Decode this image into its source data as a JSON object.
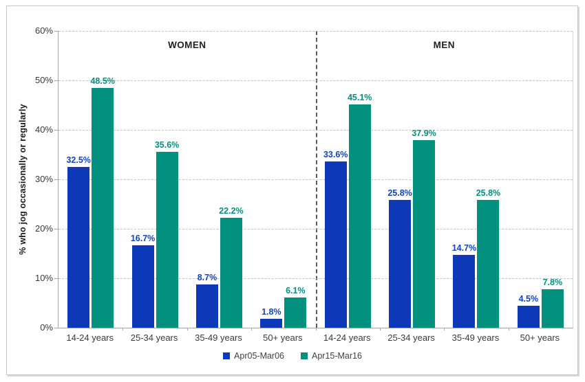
{
  "chart_data": {
    "type": "bar",
    "title": "",
    "ylabel": "% who jog occasionally or regularly",
    "ylim": [
      0,
      60
    ],
    "ytick_step": 10,
    "ytick_suffix": "%",
    "grid": "horizontal-dashed",
    "legend_position": "bottom-center",
    "legend": [
      "Apr05-Mar06",
      "Apr15-Mar16"
    ],
    "colors": {
      "Apr05-Mar06": "#0d38b8",
      "Apr15-Mar16": "#02917f",
      "label_blue": "#1443c0",
      "label_teal": "#029180"
    },
    "groups": [
      {
        "label": "WOMEN",
        "categories": [
          "14-24 years",
          "25-34 years",
          "35-49 years",
          "50+ years"
        ],
        "series": [
          {
            "name": "Apr05-Mar06",
            "values": [
              32.5,
              16.7,
              8.7,
              1.8
            ]
          },
          {
            "name": "Apr15-Mar16",
            "values": [
              48.5,
              35.6,
              22.2,
              6.1
            ]
          }
        ]
      },
      {
        "label": "MEN",
        "categories": [
          "14-24 years",
          "25-34 years",
          "35-49 years",
          "50+ years"
        ],
        "series": [
          {
            "name": "Apr05-Mar06",
            "values": [
              33.6,
              25.8,
              14.7,
              4.5
            ]
          },
          {
            "name": "Apr15-Mar16",
            "values": [
              45.1,
              37.9,
              25.8,
              7.8
            ]
          }
        ]
      }
    ]
  }
}
